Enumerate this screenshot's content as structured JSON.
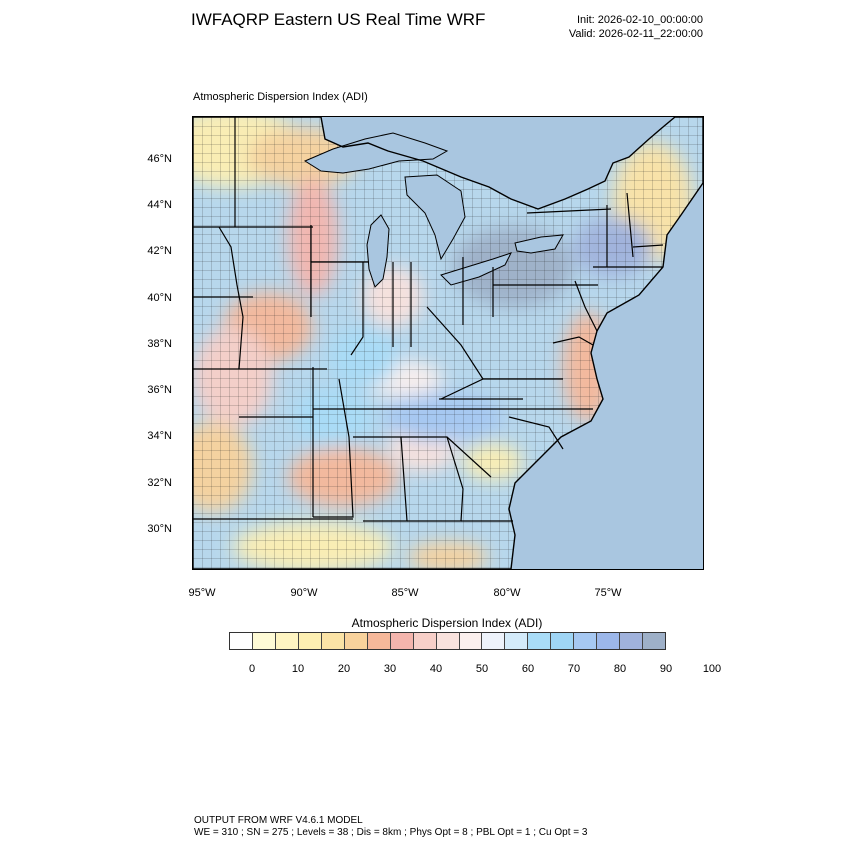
{
  "header": {
    "title": "IWFAQRP Eastern US Real Time WRF",
    "init": "Init: 2026-02-10_00:00:00",
    "valid": "Valid: 2026-02-11_22:00:00"
  },
  "map": {
    "subtitle": "Atmospheric Dispersion Index   (ADI)",
    "lat_ticks": [
      "46°N",
      "44°N",
      "42°N",
      "40°N",
      "38°N",
      "36°N",
      "34°N",
      "32°N",
      "30°N"
    ],
    "lon_ticks": [
      "95°W",
      "90°W",
      "85°W",
      "80°W",
      "75°W"
    ],
    "land_base": "#b7d7ec",
    "water": "#a9c6e0"
  },
  "colorbar": {
    "title": "Atmospheric Dispersion Index  (ADI)",
    "colors": [
      "#ffffff",
      "#fffbd6",
      "#fff5c2",
      "#fdefb2",
      "#fbe3a6",
      "#f8d29c",
      "#f6b89a",
      "#f4b5ad",
      "#f7cfc8",
      "#f9e2dd",
      "#fbf0ee",
      "#eef3fb",
      "#d4ebfa",
      "#a9dcf7",
      "#9fd5f5",
      "#a6c8f2",
      "#9cb7ea",
      "#a0b2dc",
      "#9eb0c8"
    ],
    "labels": [
      "0",
      "10",
      "20",
      "30",
      "40",
      "50",
      "60",
      "70",
      "80",
      "90",
      "100"
    ]
  },
  "footer": {
    "line1": "OUTPUT FROM WRF V4.6.1 MODEL",
    "line2": "WE = 310 ; SN = 275 ; Levels = 38 ; Dis = 8km ; Phys Opt = 8 ; PBL Opt = 1 ; Cu Opt = 3"
  }
}
